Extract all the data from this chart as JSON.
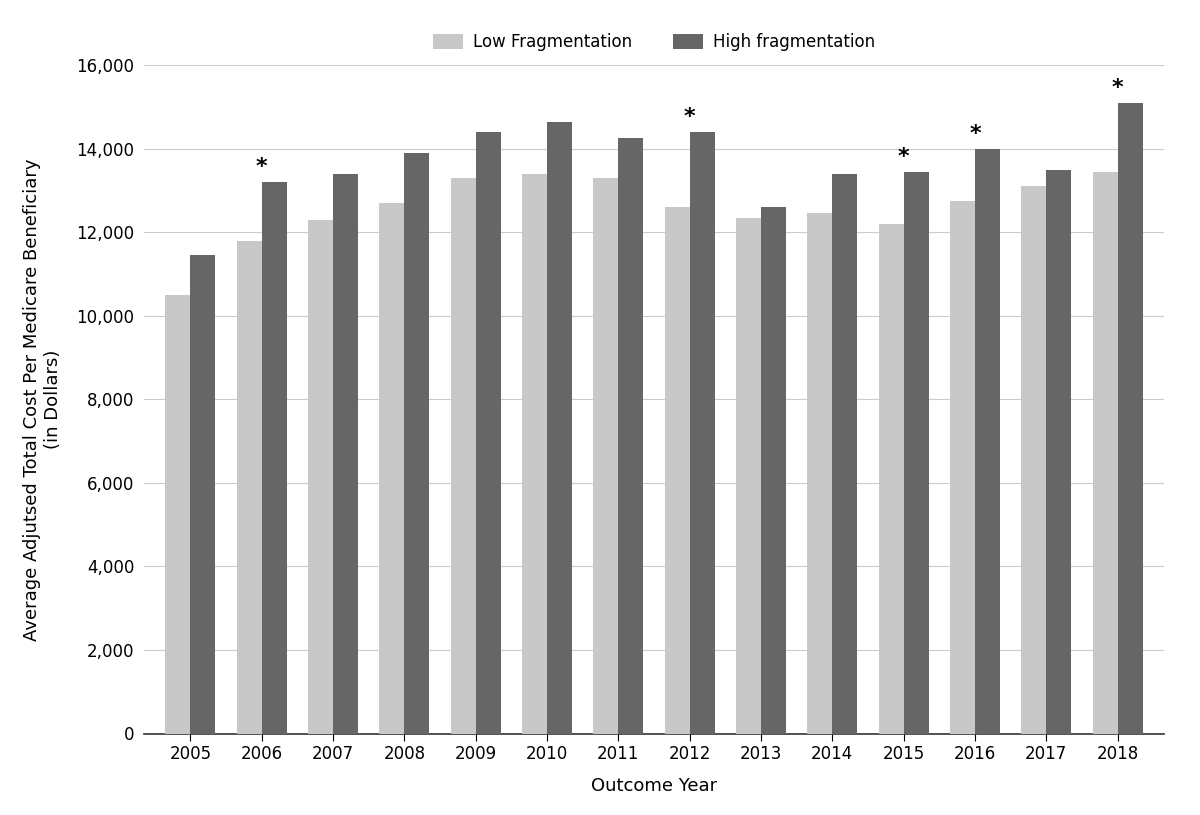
{
  "years": [
    2005,
    2006,
    2007,
    2008,
    2009,
    2010,
    2011,
    2012,
    2013,
    2014,
    2015,
    2016,
    2017,
    2018
  ],
  "low_frag": [
    10500,
    11800,
    12300,
    12700,
    13300,
    13400,
    13300,
    12600,
    12350,
    12450,
    12200,
    12750,
    13100,
    13450
  ],
  "high_frag": [
    11450,
    13200,
    13400,
    13900,
    14400,
    14650,
    14250,
    14400,
    12600,
    13400,
    13450,
    14000,
    13500,
    15100
  ],
  "significant_years": [
    2006,
    2012,
    2015,
    2016,
    2018
  ],
  "low_frag_color": "#c8c8c8",
  "high_frag_color": "#666666",
  "bar_width": 0.35,
  "ylabel_line1": "Average Adjutsed Total Cost Per Medicare Beneficiary",
  "ylabel_line2": "(in Dollars)",
  "xlabel": "Outcome Year",
  "ylim": [
    0,
    16000
  ],
  "yticks": [
    0,
    2000,
    4000,
    6000,
    8000,
    10000,
    12000,
    14000,
    16000
  ],
  "legend_low": "Low Fragmentation",
  "legend_high": "High fragmentation",
  "background_color": "#ffffff",
  "grid_color": "#cccccc",
  "axis_fontsize": 13,
  "tick_fontsize": 12,
  "legend_fontsize": 12,
  "star_fontsize": 16
}
